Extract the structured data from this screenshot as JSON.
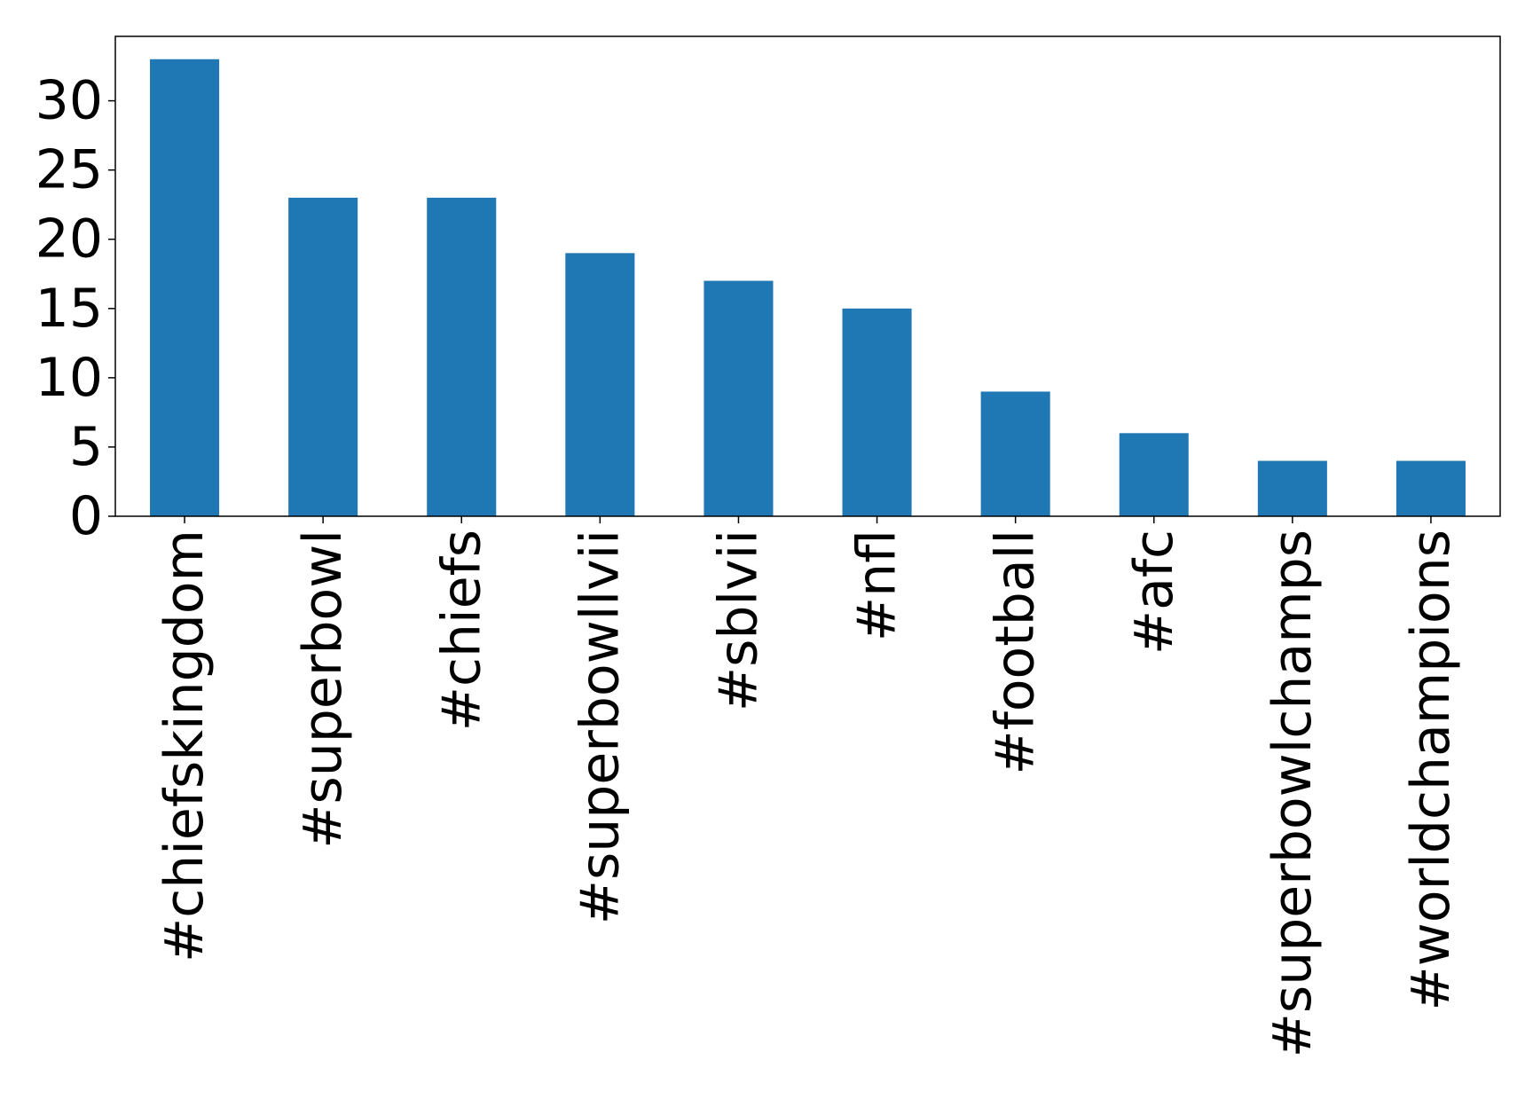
{
  "chart_data": {
    "type": "bar",
    "title": "",
    "xlabel": "",
    "ylabel": "",
    "categories": [
      "#chiefskingdom",
      "#superbowl",
      "#chiefs",
      "#superbowllvii",
      "#sblvii",
      "#nfl",
      "#football",
      "#afc",
      "#superbowlchamps",
      "#worldchampions"
    ],
    "values": [
      33,
      23,
      23,
      19,
      17,
      15,
      9,
      6,
      4,
      4
    ],
    "ylim": [
      0,
      34.65
    ],
    "yticks": [
      0,
      5,
      10,
      15,
      20,
      25,
      30
    ],
    "ytick_labels": [
      "0",
      "5",
      "10",
      "15",
      "20",
      "25",
      "30"
    ],
    "grid": false,
    "legend": "none",
    "bar_color": "#1f77b4"
  }
}
